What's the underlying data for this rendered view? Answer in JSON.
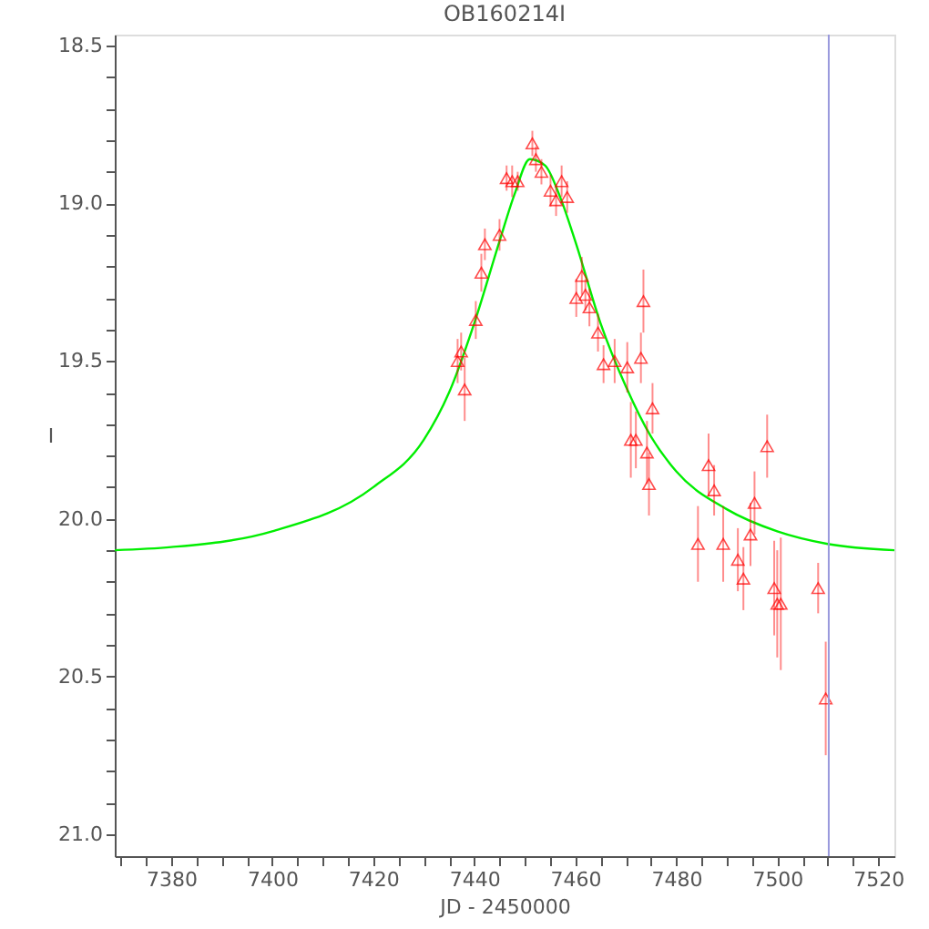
{
  "chart_data": {
    "type": "scatter",
    "title": "OB160214I",
    "xlabel": "JD - 2450000",
    "ylabel": "I",
    "xlim": [
      7368.8,
      7523.2
    ],
    "ylim": [
      21.07,
      18.465
    ],
    "xticks": [
      7380,
      7400,
      7420,
      7440,
      7460,
      7480,
      7500,
      7520,
      {
        "value": 7370,
        "label": null
      },
      {
        "value": 7375,
        "label": null
      },
      {
        "value": 7385,
        "label": null
      },
      {
        "value": 7390,
        "label": null
      },
      {
        "value": 7395,
        "label": null
      },
      {
        "value": 7405,
        "label": null
      },
      {
        "value": 7410,
        "label": null
      },
      {
        "value": 7415,
        "label": null
      },
      {
        "value": 7425,
        "label": null
      },
      {
        "value": 7430,
        "label": null
      },
      {
        "value": 7435,
        "label": null
      },
      {
        "value": 7445,
        "label": null
      },
      {
        "value": 7450,
        "label": null
      },
      {
        "value": 7455,
        "label": null
      },
      {
        "value": 7465,
        "label": null
      },
      {
        "value": 7470,
        "label": null
      },
      {
        "value": 7475,
        "label": null
      },
      {
        "value": 7485,
        "label": null
      },
      {
        "value": 7490,
        "label": null
      },
      {
        "value": 7495,
        "label": null
      },
      {
        "value": 7505,
        "label": null
      },
      {
        "value": 7510,
        "label": null
      },
      {
        "value": 7515,
        "label": null
      }
    ],
    "yticks": [
      {
        "value": 18.5,
        "label": "18.5"
      },
      {
        "value": 19.0,
        "label": "19.0"
      },
      {
        "value": 19.5,
        "label": "19.5"
      },
      {
        "value": 20.0,
        "label": "20.0"
      },
      {
        "value": 20.5,
        "label": "20.5"
      },
      {
        "value": 21.0,
        "label": "21.0"
      },
      {
        "value": 18.6,
        "label": null
      },
      {
        "value": 18.7,
        "label": null
      },
      {
        "value": 18.8,
        "label": null
      },
      {
        "value": 18.9,
        "label": null
      },
      {
        "value": 19.1,
        "label": null
      },
      {
        "value": 19.2,
        "label": null
      },
      {
        "value": 19.3,
        "label": null
      },
      {
        "value": 19.4,
        "label": null
      },
      {
        "value": 19.6,
        "label": null
      },
      {
        "value": 19.7,
        "label": null
      },
      {
        "value": 19.8,
        "label": null
      },
      {
        "value": 19.9,
        "label": null
      },
      {
        "value": 20.1,
        "label": null
      },
      {
        "value": 20.2,
        "label": null
      },
      {
        "value": 20.3,
        "label": null
      },
      {
        "value": 20.4,
        "label": null
      },
      {
        "value": 20.6,
        "label": null
      },
      {
        "value": 20.7,
        "label": null
      },
      {
        "value": 20.8,
        "label": null
      },
      {
        "value": 20.9,
        "label": null
      }
    ],
    "grid": false,
    "ref_lines": [
      {
        "axis": "x",
        "value": 7510.2,
        "color": "#9999dd"
      }
    ],
    "series": [
      {
        "type": "line",
        "color": "#00ee00",
        "x": [
          7368.8,
          7380,
          7400,
          7420,
          7430,
          7435,
          7440,
          7445,
          7448,
          7451,
          7454,
          7457,
          7460,
          7465,
          7470,
          7475,
          7480,
          7490,
          7500,
          7510,
          7523.2
        ],
        "values": [
          20.1,
          20.09,
          20.04,
          19.9,
          19.75,
          19.6,
          19.38,
          19.12,
          18.97,
          18.86,
          18.88,
          18.98,
          19.12,
          19.38,
          19.58,
          19.74,
          19.85,
          19.97,
          20.04,
          20.08,
          20.1
        ]
      },
      {
        "marker": "triangle",
        "color": "#ff0000",
        "x": [
          7436.7,
          7437.4,
          7438.1,
          7440.3,
          7441.4,
          7442.1,
          7445.0,
          7446.4,
          7447.5,
          7448.6,
          7451.5,
          7452.2,
          7453.3,
          7455.1,
          7456.2,
          7457.3,
          7458.4,
          7460.2,
          7461.3,
          7462.0,
          7462.8,
          7464.5,
          7465.6,
          7467.8,
          7470.3,
          7471.0,
          7472.0,
          7473.0,
          7473.5,
          7474.2,
          7474.6,
          7475.3,
          7484.3,
          7486.4,
          7487.5,
          7489.3,
          7492.2,
          7493.3,
          7494.7,
          7495.5,
          7498.0,
          7499.4,
          7500.0,
          7500.7,
          7508.1,
          7509.6
        ],
        "values": [
          19.5,
          19.47,
          19.59,
          19.37,
          19.22,
          19.13,
          19.1,
          18.92,
          18.93,
          18.93,
          18.81,
          18.86,
          18.9,
          18.96,
          18.99,
          18.93,
          18.98,
          19.3,
          19.23,
          19.29,
          19.33,
          19.41,
          19.51,
          19.5,
          19.52,
          19.75,
          19.75,
          19.49,
          19.31,
          19.79,
          19.89,
          19.65,
          20.08,
          19.83,
          19.91,
          20.08,
          20.13,
          20.19,
          20.05,
          19.95,
          19.77,
          20.22,
          20.27,
          20.27,
          20.22,
          20.57
        ],
        "errors": [
          0.07,
          0.06,
          0.1,
          0.06,
          0.06,
          0.05,
          0.05,
          0.04,
          0.05,
          0.03,
          0.04,
          0.04,
          0.04,
          0.05,
          0.05,
          0.05,
          0.05,
          0.06,
          0.06,
          0.05,
          0.06,
          0.06,
          0.06,
          0.07,
          0.08,
          0.12,
          0.09,
          0.08,
          0.1,
          0.1,
          0.1,
          0.08,
          0.12,
          0.1,
          0.08,
          0.12,
          0.1,
          0.1,
          0.1,
          0.1,
          0.1,
          0.15,
          0.17,
          0.21,
          0.08,
          0.18
        ]
      }
    ]
  }
}
